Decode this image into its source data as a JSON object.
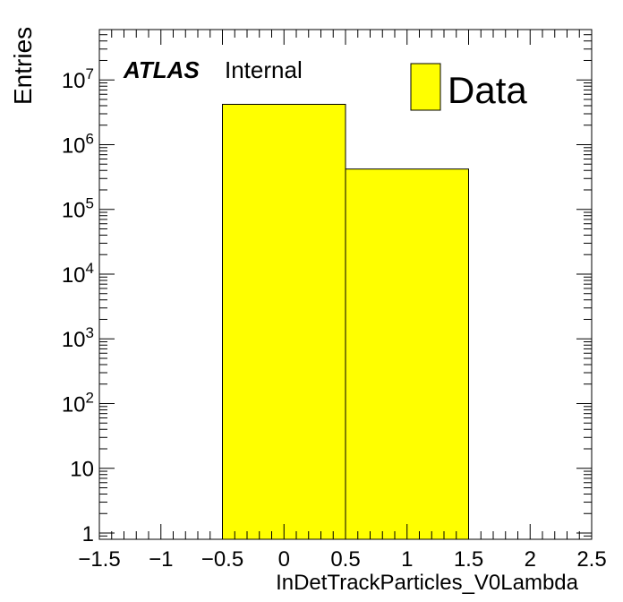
{
  "chart_data": {
    "type": "bar",
    "style": "histogram",
    "bin_edges": [
      -0.5,
      0.5,
      1.5
    ],
    "values": [
      4200000,
      420000
    ],
    "series": [
      {
        "name": "Data",
        "values": [
          4200000,
          420000
        ],
        "color": "#ffff00"
      }
    ],
    "xlabel": "InDetTrackParticles_V0Lambda",
    "ylabel": "Entries",
    "xlim": [
      -1.5,
      2.5
    ],
    "ylim": [
      0.8,
      60000000
    ],
    "yscale": "log",
    "xticks": [
      -1.5,
      -1,
      -0.5,
      0,
      0.5,
      1,
      1.5,
      2,
      2.5
    ],
    "xtick_labels": [
      "−1.5",
      "−1",
      "−0.5",
      "0",
      "0.5",
      "1",
      "1.5",
      "2",
      "2.5"
    ],
    "ytick_labels": [
      {
        "v": 1,
        "base": "1",
        "exp": ""
      },
      {
        "v": 10,
        "base": "10",
        "exp": ""
      },
      {
        "v": 100,
        "base": "10",
        "exp": "2"
      },
      {
        "v": 1000,
        "base": "10",
        "exp": "3"
      },
      {
        "v": 10000,
        "base": "10",
        "exp": "4"
      },
      {
        "v": 100000,
        "base": "10",
        "exp": "5"
      },
      {
        "v": 1000000,
        "base": "10",
        "exp": "6"
      },
      {
        "v": 10000000,
        "base": "10",
        "exp": "7"
      }
    ],
    "grid": false,
    "legend_position": "top-right",
    "annotations": {
      "experiment": "ATLAS",
      "status": "Internal"
    }
  }
}
